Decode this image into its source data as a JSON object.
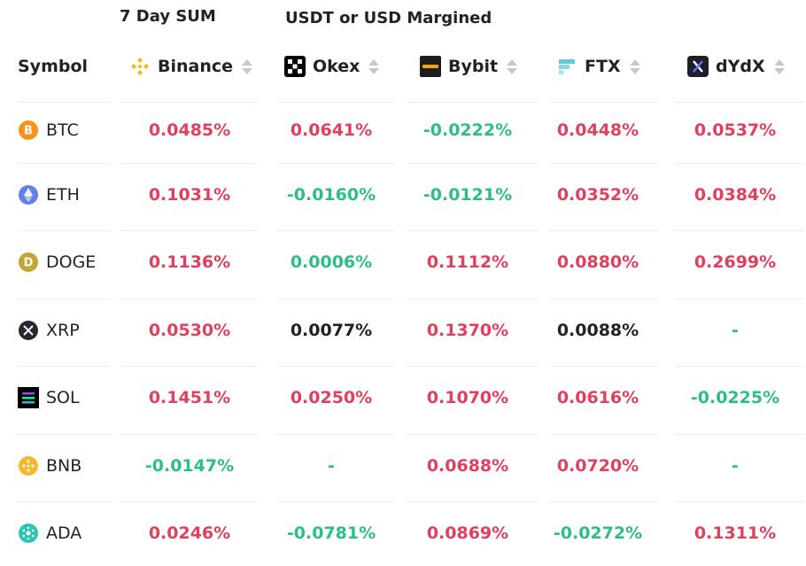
{
  "header": {
    "sum_label": "7 Day SUM",
    "margin_label": "USDT or USD Margined",
    "symbol_col": "Symbol",
    "exchanges": [
      {
        "name": "Binance",
        "icon": "binance-logo"
      },
      {
        "name": "Okex",
        "icon": "okex-logo"
      },
      {
        "name": "Bybit",
        "icon": "bybit-logo"
      },
      {
        "name": "FTX",
        "icon": "ftx-logo"
      },
      {
        "name": "dYdX",
        "icon": "dydx-logo"
      }
    ]
  },
  "colors": {
    "positive": "#e0405e",
    "negative": "#2ebd85",
    "neutral": "#1e2329",
    "dash": "#2ebd85"
  },
  "rows": [
    {
      "symbol": "BTC",
      "icon": "bitcoin-icon",
      "values": [
        "0.0485%",
        "0.0641%",
        "-0.0222%",
        "0.0448%",
        "0.0537%"
      ],
      "tones": [
        "pos",
        "pos",
        "neg",
        "pos",
        "pos"
      ]
    },
    {
      "symbol": "ETH",
      "icon": "ethereum-icon",
      "values": [
        "0.1031%",
        "-0.0160%",
        "-0.0121%",
        "0.0352%",
        "0.0384%"
      ],
      "tones": [
        "pos",
        "neg",
        "neg",
        "pos",
        "pos"
      ]
    },
    {
      "symbol": "DOGE",
      "icon": "dogecoin-icon",
      "values": [
        "0.1136%",
        "0.0006%",
        "0.1112%",
        "0.0880%",
        "0.2699%"
      ],
      "tones": [
        "pos",
        "neg",
        "pos",
        "pos",
        "pos"
      ]
    },
    {
      "symbol": "XRP",
      "icon": "xrp-icon",
      "values": [
        "0.0530%",
        "0.0077%",
        "0.1370%",
        "0.0088%",
        "-"
      ],
      "tones": [
        "pos",
        "neu",
        "pos",
        "neu",
        "dash"
      ]
    },
    {
      "symbol": "SOL",
      "icon": "solana-icon",
      "values": [
        "0.1451%",
        "0.0250%",
        "0.1070%",
        "0.0616%",
        "-0.0225%"
      ],
      "tones": [
        "pos",
        "pos",
        "pos",
        "pos",
        "neg"
      ]
    },
    {
      "symbol": "BNB",
      "icon": "bnb-icon",
      "values": [
        "-0.0147%",
        "-",
        "0.0688%",
        "0.0720%",
        "-"
      ],
      "tones": [
        "neg",
        "dash",
        "pos",
        "pos",
        "dash"
      ]
    },
    {
      "symbol": "ADA",
      "icon": "cardano-icon",
      "values": [
        "0.0246%",
        "-0.0781%",
        "0.0869%",
        "-0.0272%",
        "0.1311%"
      ],
      "tones": [
        "pos",
        "neg",
        "pos",
        "neg",
        "pos"
      ]
    }
  ]
}
